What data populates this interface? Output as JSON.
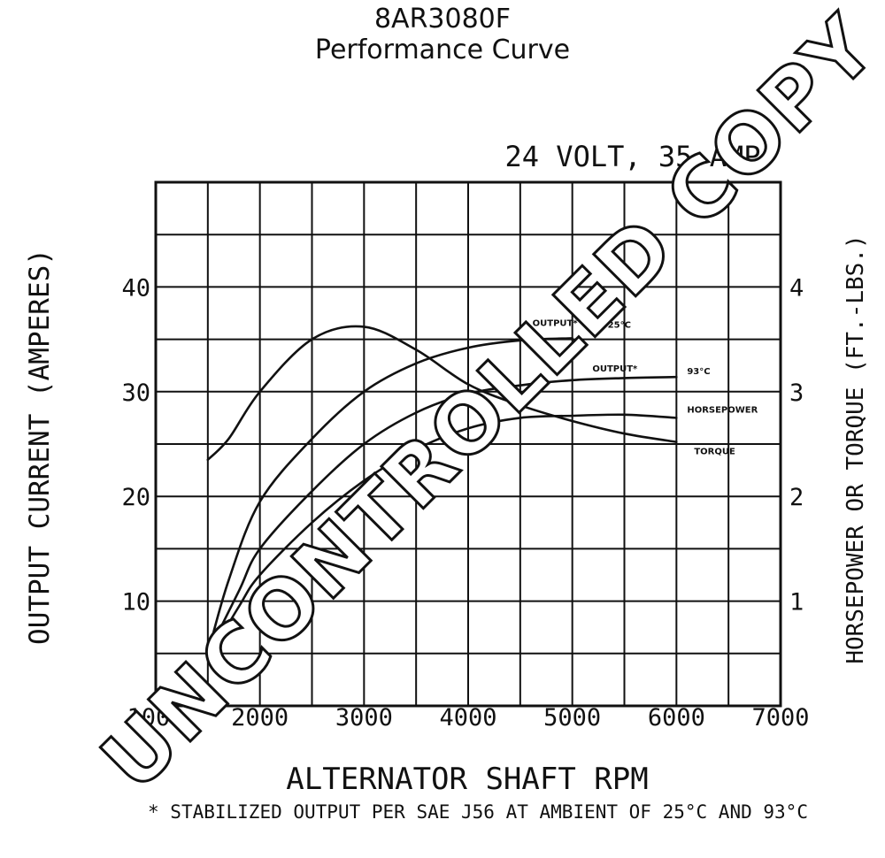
{
  "title": {
    "line1": "8AR3080F",
    "line2": "Performance Curve"
  },
  "watermark": "UNCONTROLLED COPY",
  "chart_data": {
    "type": "line",
    "subtitle": "24 VOLT, 35 AMP",
    "xlabel": "ALTERNATOR SHAFT RPM",
    "ylabel_left": "OUTPUT CURRENT (AMPERES)",
    "ylabel_right": "HORSEPOWER OR TORQUE (FT.-LBS.)",
    "footnote": "* STABILIZED OUTPUT PER SAE J56 AT AMBIENT OF 25°C AND 93°C",
    "xlim": [
      1000,
      7000
    ],
    "ylim_left": [
      0,
      50
    ],
    "ylim_right": [
      0,
      5
    ],
    "grid": true,
    "x_ticks": [
      {
        "value": 1000,
        "label": "1000"
      },
      {
        "value": 2000,
        "label": "2000"
      },
      {
        "value": 3000,
        "label": "3000"
      },
      {
        "value": 4000,
        "label": "4000"
      },
      {
        "value": 5000,
        "label": "5000"
      },
      {
        "value": 6000,
        "label": "6000"
      },
      {
        "value": 7000,
        "label": "7000"
      }
    ],
    "y_ticks_left": [
      {
        "value": 10,
        "label": "10"
      },
      {
        "value": 20,
        "label": "20"
      },
      {
        "value": 30,
        "label": "30"
      },
      {
        "value": 40,
        "label": "40"
      }
    ],
    "y_ticks_right": [
      {
        "value": 1,
        "label": "1"
      },
      {
        "value": 2,
        "label": "2"
      },
      {
        "value": 3,
        "label": "3"
      },
      {
        "value": 4,
        "label": "4"
      }
    ],
    "series": [
      {
        "name": "OUTPUT 25°C",
        "axis": "left",
        "x": [
          1500,
          1700,
          2000,
          2500,
          3000,
          3500,
          4000,
          4500,
          5000
        ],
        "y": [
          5,
          12,
          19.5,
          25.5,
          30,
          32.7,
          34.2,
          34.9,
          35.1
        ]
      },
      {
        "name": "OUTPUT 93°C",
        "axis": "left",
        "x": [
          1500,
          1800,
          2000,
          2500,
          3000,
          3500,
          4000,
          4500,
          5000,
          5500,
          6000
        ],
        "y": [
          5,
          11,
          15,
          20.5,
          25,
          28,
          29.8,
          30.6,
          31.1,
          31.3,
          31.4
        ]
      },
      {
        "name": "HORSEPOWER",
        "axis": "right",
        "x": [
          1500,
          1800,
          2000,
          2500,
          3000,
          3500,
          4000,
          4500,
          5000,
          5500,
          6000
        ],
        "y": [
          0.45,
          0.95,
          1.25,
          1.75,
          2.15,
          2.45,
          2.65,
          2.75,
          2.77,
          2.78,
          2.75
        ]
      },
      {
        "name": "TORQUE",
        "axis": "right",
        "x": [
          1500,
          1700,
          2000,
          2500,
          3000,
          3500,
          4000,
          4500,
          5000,
          5500,
          6000
        ],
        "y": [
          2.35,
          2.55,
          3.0,
          3.5,
          3.62,
          3.4,
          3.07,
          2.87,
          2.72,
          2.6,
          2.52
        ]
      }
    ],
    "curve_labels": [
      {
        "series": "OUTPUT 25°C",
        "name_text": "OUTPUT*",
        "temp_text": "25°C"
      },
      {
        "series": "OUTPUT 93°C",
        "name_text": "OUTPUT*",
        "temp_text": "93°C"
      },
      {
        "series": "HORSEPOWER",
        "name_text": "HORSEPOWER",
        "temp_text": ""
      },
      {
        "series": "TORQUE",
        "name_text": "TORQUE",
        "temp_text": ""
      }
    ]
  }
}
